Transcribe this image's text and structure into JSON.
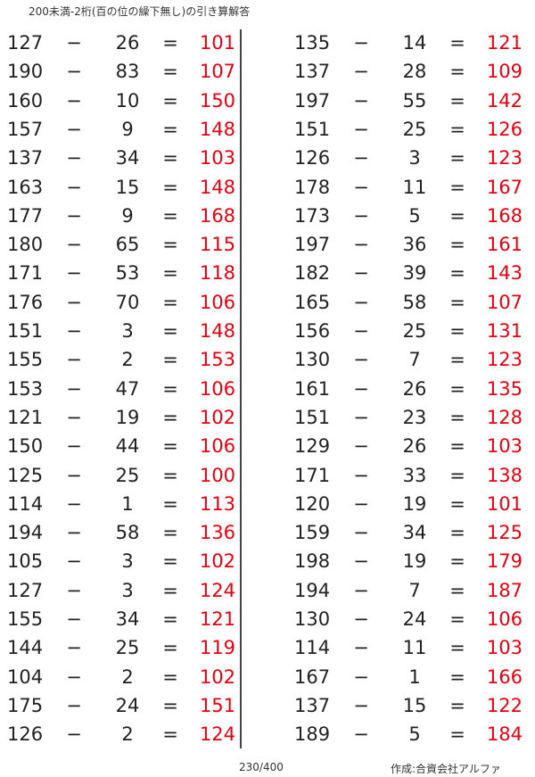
{
  "title": "200未満-2桁(百の位の繰下無し)の引き算解答",
  "operator": "−",
  "equals": "=",
  "colors": {
    "answer": "#e60012",
    "text": "#222222"
  },
  "left_column": [
    [
      127,
      26,
      101
    ],
    [
      190,
      83,
      107
    ],
    [
      160,
      10,
      150
    ],
    [
      157,
      9,
      148
    ],
    [
      137,
      34,
      103
    ],
    [
      163,
      15,
      148
    ],
    [
      177,
      9,
      168
    ],
    [
      180,
      65,
      115
    ],
    [
      171,
      53,
      118
    ],
    [
      176,
      70,
      106
    ],
    [
      151,
      3,
      148
    ],
    [
      155,
      2,
      153
    ],
    [
      153,
      47,
      106
    ],
    [
      121,
      19,
      102
    ],
    [
      150,
      44,
      106
    ],
    [
      125,
      25,
      100
    ],
    [
      114,
      1,
      113
    ],
    [
      194,
      58,
      136
    ],
    [
      105,
      3,
      102
    ],
    [
      127,
      3,
      124
    ],
    [
      155,
      34,
      121
    ],
    [
      144,
      25,
      119
    ],
    [
      104,
      2,
      102
    ],
    [
      175,
      24,
      151
    ],
    [
      126,
      2,
      124
    ]
  ],
  "right_column": [
    [
      135,
      14,
      121
    ],
    [
      137,
      28,
      109
    ],
    [
      197,
      55,
      142
    ],
    [
      151,
      25,
      126
    ],
    [
      126,
      3,
      123
    ],
    [
      178,
      11,
      167
    ],
    [
      173,
      5,
      168
    ],
    [
      197,
      36,
      161
    ],
    [
      182,
      39,
      143
    ],
    [
      165,
      58,
      107
    ],
    [
      156,
      25,
      131
    ],
    [
      130,
      7,
      123
    ],
    [
      161,
      26,
      135
    ],
    [
      151,
      23,
      128
    ],
    [
      129,
      26,
      103
    ],
    [
      171,
      33,
      138
    ],
    [
      120,
      19,
      101
    ],
    [
      159,
      34,
      125
    ],
    [
      198,
      19,
      179
    ],
    [
      194,
      7,
      187
    ],
    [
      130,
      24,
      106
    ],
    [
      114,
      11,
      103
    ],
    [
      167,
      1,
      166
    ],
    [
      137,
      15,
      122
    ],
    [
      189,
      5,
      184
    ]
  ],
  "footer": {
    "page": "230/400",
    "author": "作成:合資会社アルファ"
  }
}
